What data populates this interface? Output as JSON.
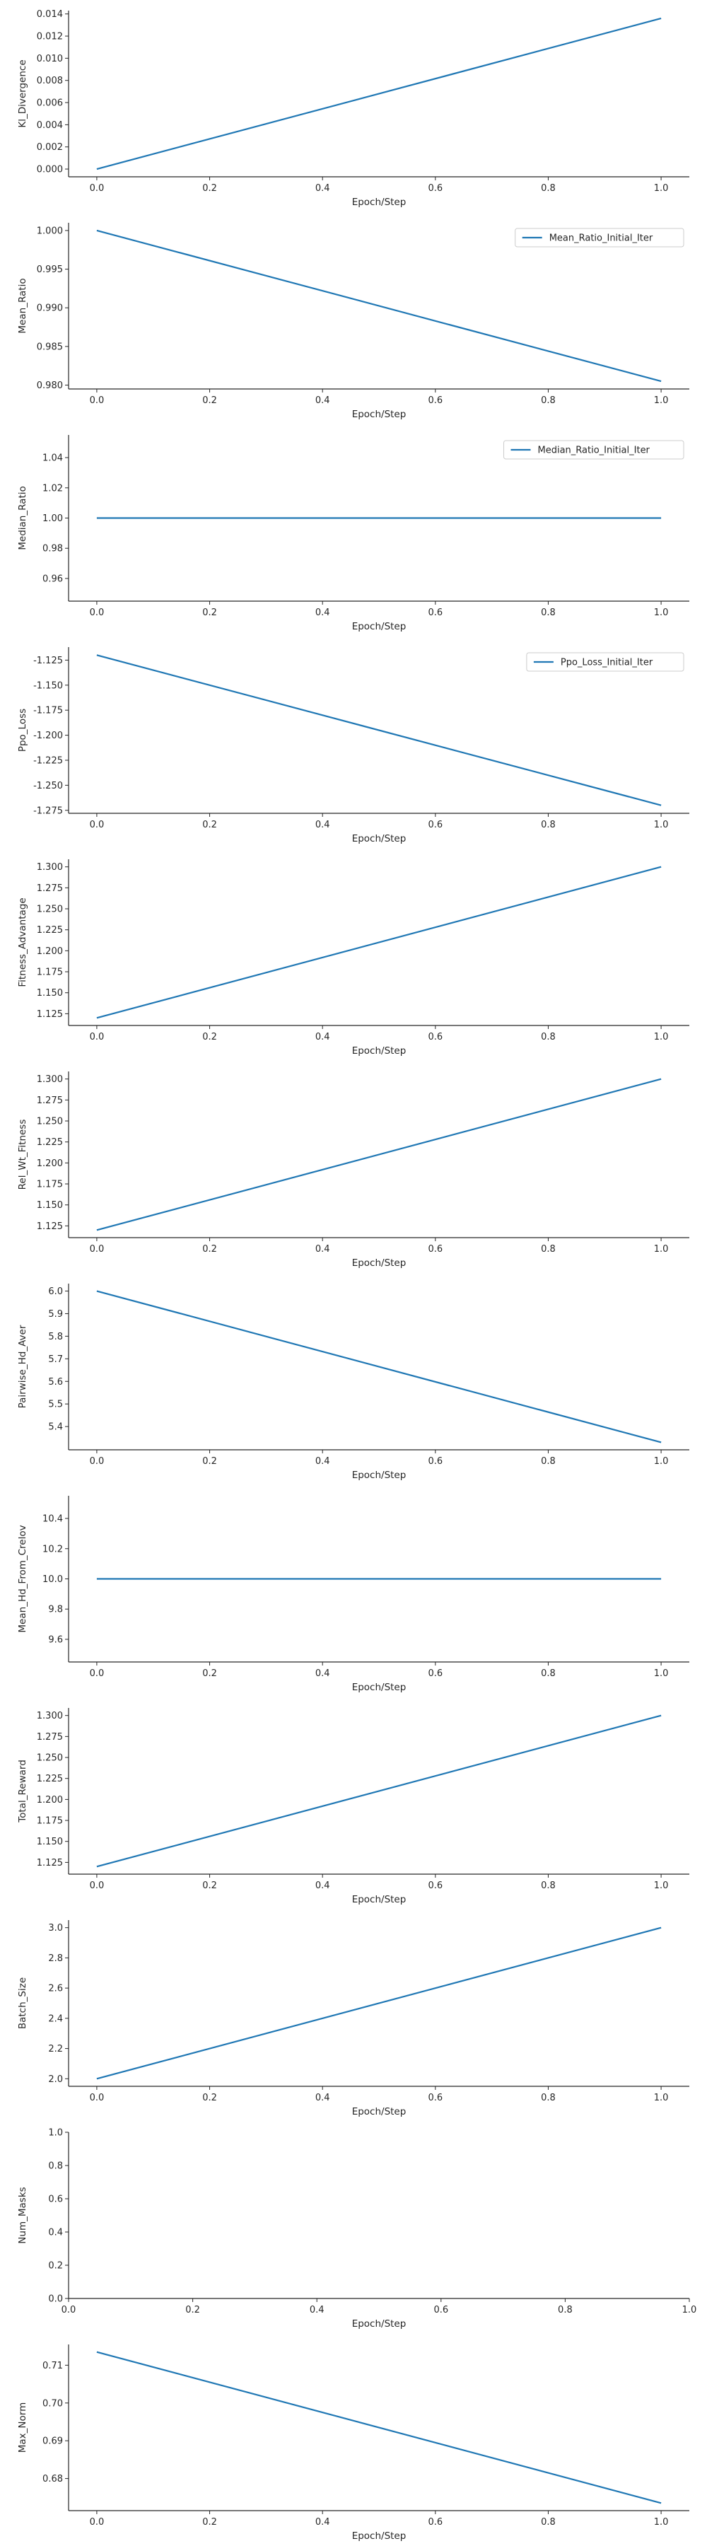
{
  "colors": {
    "line": "#1f77b4",
    "axis": "#262626",
    "legend_border": "#cccccc"
  },
  "chart_data": [
    {
      "type": "line",
      "xlabel": "Epoch/Step",
      "ylabel": "Kl_Divergence",
      "x": [
        0,
        1
      ],
      "series": [
        {
          "values": [
            0.0,
            0.0136
          ]
        }
      ],
      "xlim": [
        -0.05,
        1.05
      ],
      "ylim": [
        -0.0007,
        0.0143
      ],
      "xticks": [
        "0.0",
        "0.2",
        "0.4",
        "0.6",
        "0.8",
        "1.0"
      ],
      "yticks": [
        "0.000",
        "0.002",
        "0.004",
        "0.006",
        "0.008",
        "0.010",
        "0.012",
        "0.014"
      ],
      "grid": false,
      "legend": null
    },
    {
      "type": "line",
      "xlabel": "Epoch/Step",
      "ylabel": "Mean_Ratio",
      "x": [
        0,
        1
      ],
      "series": [
        {
          "name": "Mean_Ratio_Initial_Iter",
          "values": [
            1.0,
            0.9805
          ]
        }
      ],
      "xlim": [
        -0.05,
        1.05
      ],
      "ylim": [
        0.9795,
        1.001
      ],
      "xticks": [
        "0.0",
        "0.2",
        "0.4",
        "0.6",
        "0.8",
        "1.0"
      ],
      "yticks": [
        "0.980",
        "0.985",
        "0.990",
        "0.995",
        "1.000"
      ],
      "grid": false,
      "legend": "top-right"
    },
    {
      "type": "line",
      "xlabel": "Epoch/Step",
      "ylabel": "Median_Ratio",
      "x": [
        0,
        1
      ],
      "series": [
        {
          "name": "Median_Ratio_Initial_Iter",
          "values": [
            1.0,
            1.0
          ]
        }
      ],
      "xlim": [
        -0.05,
        1.05
      ],
      "ylim": [
        0.945,
        1.055
      ],
      "xticks": [
        "0.0",
        "0.2",
        "0.4",
        "0.6",
        "0.8",
        "1.0"
      ],
      "yticks": [
        "0.96",
        "0.98",
        "1.00",
        "1.02",
        "1.04"
      ],
      "grid": false,
      "legend": "top-right"
    },
    {
      "type": "line",
      "xlabel": "Epoch/Step",
      "ylabel": "Ppo_Loss",
      "x": [
        0,
        1
      ],
      "series": [
        {
          "name": "Ppo_Loss_Initial_Iter",
          "values": [
            -1.12,
            -1.27
          ]
        }
      ],
      "xlim": [
        -0.05,
        1.05
      ],
      "ylim": [
        -1.278,
        -1.112
      ],
      "xticks": [
        "0.0",
        "0.2",
        "0.4",
        "0.6",
        "0.8",
        "1.0"
      ],
      "yticks": [
        "-1.125",
        "-1.150",
        "-1.175",
        "-1.200",
        "-1.225",
        "-1.250",
        "-1.275"
      ],
      "grid": false,
      "legend": "top-right"
    },
    {
      "type": "line",
      "xlabel": "Epoch/Step",
      "ylabel": "Fitness_Advantage",
      "x": [
        0,
        1
      ],
      "series": [
        {
          "values": [
            1.12,
            1.3
          ]
        }
      ],
      "xlim": [
        -0.05,
        1.05
      ],
      "ylim": [
        1.111,
        1.309
      ],
      "xticks": [
        "0.0",
        "0.2",
        "0.4",
        "0.6",
        "0.8",
        "1.0"
      ],
      "yticks": [
        "1.125",
        "1.150",
        "1.175",
        "1.200",
        "1.225",
        "1.250",
        "1.275",
        "1.300"
      ],
      "grid": false,
      "legend": null
    },
    {
      "type": "line",
      "xlabel": "Epoch/Step",
      "ylabel": "Rel_Wt_Fitness",
      "x": [
        0,
        1
      ],
      "series": [
        {
          "values": [
            1.12,
            1.3
          ]
        }
      ],
      "xlim": [
        -0.05,
        1.05
      ],
      "ylim": [
        1.111,
        1.309
      ],
      "xticks": [
        "0.0",
        "0.2",
        "0.4",
        "0.6",
        "0.8",
        "1.0"
      ],
      "yticks": [
        "1.125",
        "1.150",
        "1.175",
        "1.200",
        "1.225",
        "1.250",
        "1.275",
        "1.300"
      ],
      "grid": false,
      "legend": null
    },
    {
      "type": "line",
      "xlabel": "Epoch/Step",
      "ylabel": "Pairwise_Hd_Aver",
      "x": [
        0,
        1
      ],
      "series": [
        {
          "values": [
            6.0,
            5.33
          ]
        }
      ],
      "xlim": [
        -0.05,
        1.05
      ],
      "ylim": [
        5.297,
        6.033
      ],
      "xticks": [
        "0.0",
        "0.2",
        "0.4",
        "0.6",
        "0.8",
        "1.0"
      ],
      "yticks": [
        "5.4",
        "5.5",
        "5.6",
        "5.7",
        "5.8",
        "5.9",
        "6.0"
      ],
      "grid": false,
      "legend": null
    },
    {
      "type": "line",
      "xlabel": "Epoch/Step",
      "ylabel": "Mean_Hd_From_Crelov",
      "x": [
        0,
        1
      ],
      "series": [
        {
          "values": [
            10.0,
            10.0
          ]
        }
      ],
      "xlim": [
        -0.05,
        1.05
      ],
      "ylim": [
        9.45,
        10.55
      ],
      "xticks": [
        "0.0",
        "0.2",
        "0.4",
        "0.6",
        "0.8",
        "1.0"
      ],
      "yticks": [
        "9.6",
        "9.8",
        "10.0",
        "10.2",
        "10.4"
      ],
      "grid": false,
      "legend": null
    },
    {
      "type": "line",
      "xlabel": "Epoch/Step",
      "ylabel": "Total_Reward",
      "x": [
        0,
        1
      ],
      "series": [
        {
          "values": [
            1.12,
            1.3
          ]
        }
      ],
      "xlim": [
        -0.05,
        1.05
      ],
      "ylim": [
        1.111,
        1.309
      ],
      "xticks": [
        "0.0",
        "0.2",
        "0.4",
        "0.6",
        "0.8",
        "1.0"
      ],
      "yticks": [
        "1.125",
        "1.150",
        "1.175",
        "1.200",
        "1.225",
        "1.250",
        "1.275",
        "1.300"
      ],
      "grid": false,
      "legend": null
    },
    {
      "type": "line",
      "xlabel": "Epoch/Step",
      "ylabel": "Batch_Size",
      "x": [
        0,
        1
      ],
      "series": [
        {
          "values": [
            2.0,
            3.0
          ]
        }
      ],
      "xlim": [
        -0.05,
        1.05
      ],
      "ylim": [
        1.95,
        3.05
      ],
      "xticks": [
        "0.0",
        "0.2",
        "0.4",
        "0.6",
        "0.8",
        "1.0"
      ],
      "yticks": [
        "2.0",
        "2.2",
        "2.4",
        "2.6",
        "2.8",
        "3.0"
      ],
      "grid": false,
      "legend": null
    },
    {
      "type": "line",
      "xlabel": "Epoch/Step",
      "ylabel": "Num_Masks",
      "x": [],
      "series": [],
      "xlim": [
        0,
        1
      ],
      "ylim": [
        0,
        1
      ],
      "xticks": [
        "0.0",
        "0.2",
        "0.4",
        "0.6",
        "0.8",
        "1.0"
      ],
      "yticks": [
        "0.0",
        "0.2",
        "0.4",
        "0.6",
        "0.8",
        "1.0"
      ],
      "grid": false,
      "legend": null
    },
    {
      "type": "line",
      "xlabel": "Epoch/Step",
      "ylabel": "Max_Norm",
      "x": [
        0,
        1
      ],
      "series": [
        {
          "values": [
            0.7135,
            0.6735
          ]
        }
      ],
      "xlim": [
        -0.05,
        1.05
      ],
      "ylim": [
        0.6715,
        0.7155
      ],
      "xticks": [
        "0.0",
        "0.2",
        "0.4",
        "0.6",
        "0.8",
        "1.0"
      ],
      "yticks": [
        "0.68",
        "0.69",
        "0.70",
        "0.71"
      ],
      "grid": false,
      "legend": null
    }
  ]
}
